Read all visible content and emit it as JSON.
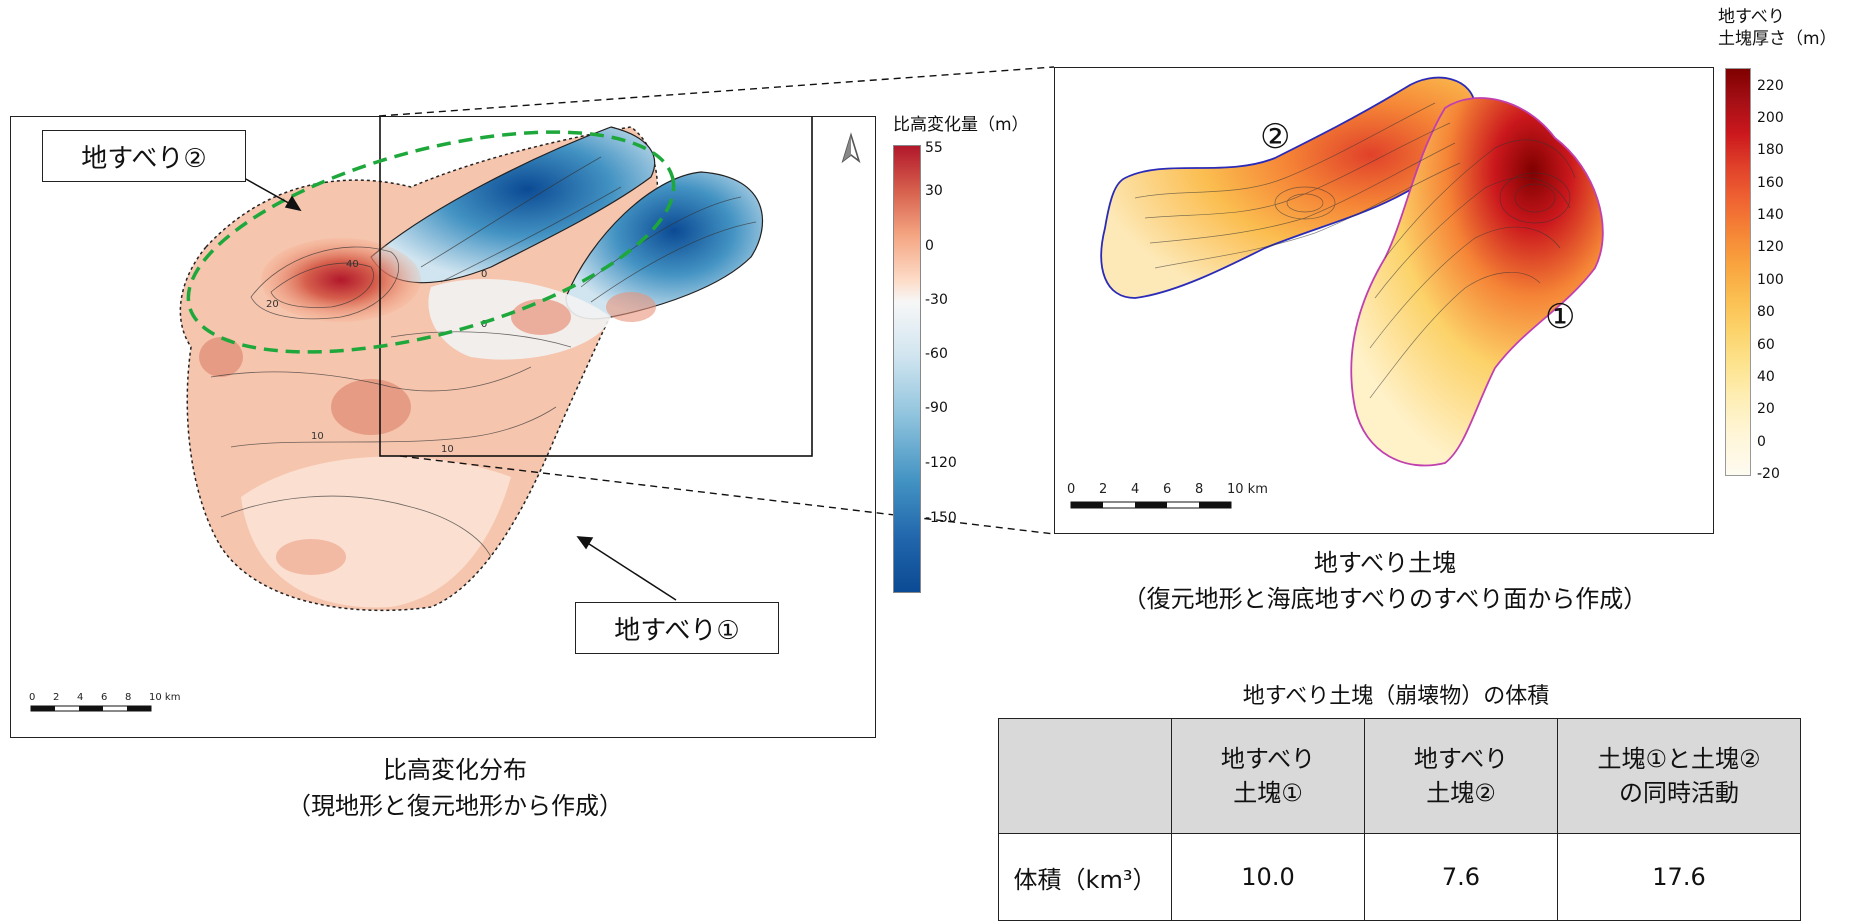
{
  "left_map": {
    "callout_landslide2": "地すべり②",
    "callout_landslide1": "地すべり①",
    "scalebar_ticks": [
      "0",
      "2",
      "4",
      "6",
      "8",
      "10 km"
    ],
    "caption_line1": "比高変化分布",
    "caption_line2": "（現地形と復元地形から作成）",
    "contour_labels": [
      "40",
      "20",
      "0",
      "10",
      "10",
      "0"
    ],
    "north_arrow_icon": "north-arrow-icon"
  },
  "left_colorbar": {
    "title": "比高変化量（m）",
    "ticks": [
      "55",
      "30",
      "0",
      "-30",
      "-60",
      "-90",
      "-120",
      "-150"
    ],
    "colors": [
      "#b2182b",
      "#d6604d",
      "#f4a582",
      "#fddbc7",
      "#f7f7f7",
      "#d1e5f0",
      "#92c5de",
      "#4393c3",
      "#2166ac",
      "#0b4a94"
    ]
  },
  "right_map": {
    "label_landslide2": "②",
    "label_landslide1": "①",
    "scalebar_ticks": [
      "0",
      "2",
      "4",
      "6",
      "8",
      "10 km"
    ],
    "caption_line1": "地すべり土塊",
    "caption_line2": "（復元地形と海底地すべりのすべり面から作成）"
  },
  "right_colorbar": {
    "title_line1": "地すべり",
    "title_line2": "土塊厚さ（m）",
    "ticks": [
      "220",
      "200",
      "180",
      "160",
      "140",
      "120",
      "100",
      "80",
      "60",
      "40",
      "20",
      "0",
      "-20"
    ],
    "colors": [
      "#7f0000",
      "#a50f15",
      "#cb181d",
      "#e0412a",
      "#ef6232",
      "#f58436",
      "#f9a33e",
      "#fbbd4f",
      "#fcd269",
      "#fde28b",
      "#feedb0",
      "#fff6d8",
      "#fdfaf0"
    ]
  },
  "volume_table": {
    "title": "地すべり土塊（崩壊物）の体積",
    "header": [
      "",
      "地すべり\n土塊①",
      "地すべり\n土塊②",
      "土塊①と土塊②\nの同時活動"
    ],
    "row_label": "体積（km³）",
    "values": [
      "10.0",
      "7.6",
      "17.6"
    ]
  }
}
